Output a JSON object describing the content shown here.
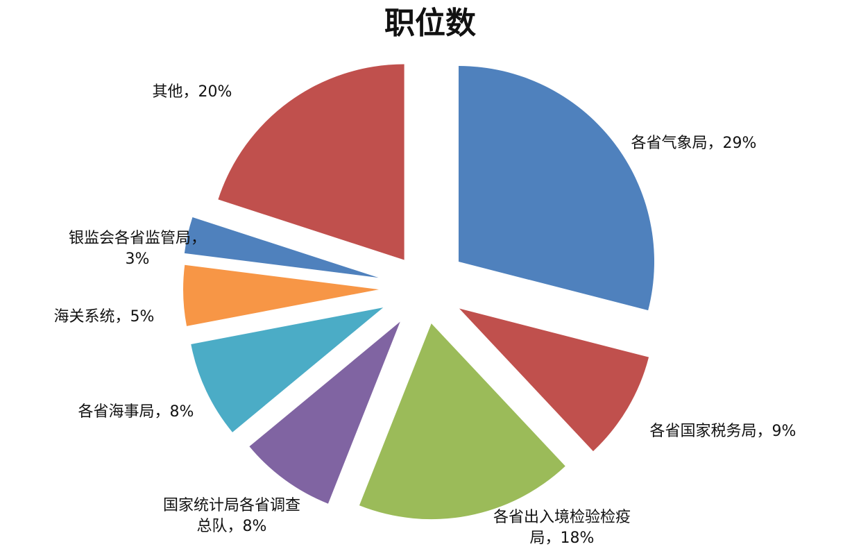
{
  "chart_data": {
    "type": "pie",
    "title": "职位数",
    "exploded": true,
    "start_angle": "12 o'clock",
    "direction": "clockwise",
    "slices": [
      {
        "name": "各省气象局",
        "value": 29,
        "label_lines": [
          "各省气象局，29%"
        ],
        "color": "#4F81BD"
      },
      {
        "name": "各省国家税务局",
        "value": 9,
        "label_lines": [
          "各省国家税务局，9%"
        ],
        "color": "#C0504D"
      },
      {
        "name": "各省出入境检验检疫局",
        "value": 18,
        "label_lines": [
          "各省出入境检验检疫",
          "局，18%"
        ],
        "color": "#9BBB59"
      },
      {
        "name": "国家统计局各省调查总队",
        "value": 8,
        "label_lines": [
          "国家统计局各省调查",
          "总队，8%"
        ],
        "color": "#8064A2"
      },
      {
        "name": "各省海事局",
        "value": 8,
        "label_lines": [
          "各省海事局，8%"
        ],
        "color": "#4BACC6"
      },
      {
        "name": "海关系统",
        "value": 5,
        "label_lines": [
          "海关系统，5%"
        ],
        "color": "#F79646"
      },
      {
        "name": "银监会各省监管局",
        "value": 3,
        "label_lines": [
          "银监会各省监管局，",
          "3%"
        ],
        "color": "#4F81BD"
      },
      {
        "name": "其他",
        "value": 20,
        "label_lines": [
          "其他，20%"
        ],
        "color": "#C0504D"
      }
    ]
  }
}
